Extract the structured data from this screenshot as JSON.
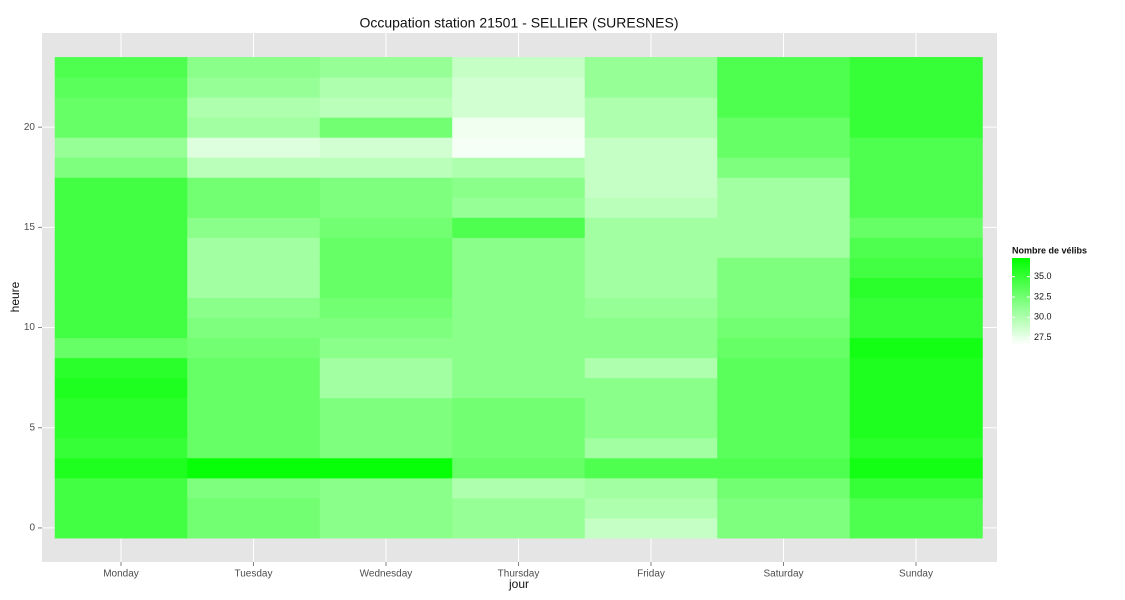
{
  "chart_data": {
    "type": "heatmap",
    "title": "Occupation station 21501 - SELLIER (SURESNES)",
    "x_label": "jour",
    "y_label": "heure",
    "categories": [
      "Monday",
      "Tuesday",
      "Wednesday",
      "Thursday",
      "Friday",
      "Saturday",
      "Sunday"
    ],
    "y": [
      0,
      1,
      2,
      3,
      4,
      5,
      6,
      7,
      8,
      9,
      10,
      11,
      12,
      13,
      14,
      15,
      16,
      17,
      18,
      19,
      20,
      21,
      22,
      23
    ],
    "values": [
      [
        34.5,
        34.5,
        34.5,
        36,
        35,
        35.5,
        35.5,
        36,
        35.5,
        33,
        34.5,
        34.5,
        34.5,
        34.5,
        34.5,
        34.5,
        34.5,
        34.5,
        32,
        31,
        33,
        33,
        33.5,
        34
      ],
      [
        32.5,
        32.5,
        32,
        37,
        33,
        33,
        33,
        33,
        33,
        32.5,
        32,
        31.5,
        30.5,
        30.5,
        30.5,
        31.5,
        32.5,
        32.5,
        29.5,
        28,
        30.5,
        30,
        31,
        31.5
      ],
      [
        31.5,
        31.5,
        31.5,
        37,
        32,
        32,
        32,
        30.5,
        30.5,
        31.5,
        32,
        32.5,
        33,
        33,
        33,
        32.5,
        32,
        32,
        29.5,
        28.5,
        32.5,
        29.5,
        30,
        31
      ],
      [
        31,
        31,
        30,
        33,
        32.5,
        32.5,
        32.5,
        31.5,
        31.5,
        31.5,
        31.5,
        31.5,
        31.5,
        31.5,
        31.5,
        34,
        31,
        31.5,
        30,
        27,
        27.2,
        28.5,
        28.5,
        29
      ],
      [
        29,
        30,
        30.5,
        34,
        30.5,
        31.5,
        31.5,
        31.5,
        30,
        31.5,
        31.5,
        31,
        30.5,
        30.5,
        30.5,
        30.5,
        29.5,
        29,
        29,
        29,
        30,
        30,
        31,
        31
      ],
      [
        32,
        32,
        32.5,
        34,
        33.5,
        33.5,
        33.5,
        33.5,
        33.5,
        33,
        32.5,
        32,
        32,
        32,
        30.5,
        30.5,
        30.5,
        30.5,
        32,
        33,
        33,
        34,
        34,
        34
      ],
      [
        34,
        34,
        35,
        36.5,
        35.5,
        36,
        36,
        36,
        36,
        36.5,
        35,
        35,
        35.5,
        34.5,
        34,
        33,
        34,
        34,
        34,
        34,
        35,
        35,
        35,
        35
      ]
    ],
    "ylim": [
      -1.7,
      24.7
    ],
    "yticks": [
      0,
      5,
      10,
      15,
      20
    ],
    "grid": true,
    "legend": {
      "title": "Nombre de vélibs",
      "clim": [
        26.6,
        37.3
      ],
      "low": "#ffffff",
      "high": "#00ff00",
      "ticks": [
        {
          "value": 27.5,
          "label": "27.5"
        },
        {
          "value": 30,
          "label": "30.0"
        },
        {
          "value": 32.5,
          "label": "32.5"
        },
        {
          "value": 35,
          "label": "35.0"
        }
      ]
    }
  }
}
